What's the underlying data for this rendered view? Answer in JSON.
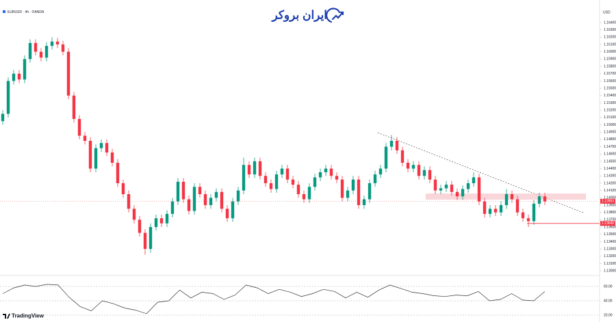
{
  "chart_data": {
    "type": "candlestick",
    "title": "EURUSD · 4h · OANDA",
    "brand": "ایران بروکر",
    "footer": "TradingView",
    "currency": "USD",
    "colors": {
      "up": "#089981",
      "down": "#f23645"
    },
    "open": [
      1.1505,
      1.1515,
      1.156,
      1.157,
      1.1562,
      1.159,
      1.1612,
      1.16,
      1.1592,
      1.1608,
      1.1614,
      1.161,
      1.16,
      1.154,
      1.1508,
      1.1485,
      1.1478,
      1.144,
      1.1468,
      1.1475,
      1.1462,
      1.1448,
      1.142,
      1.1405,
      1.1385,
      1.137,
      1.1352,
      1.133,
      1.136,
      1.1372,
      1.1365,
      1.1378,
      1.1395,
      1.1422,
      1.1398,
      1.1382,
      1.1415,
      1.1405,
      1.139,
      1.14,
      1.1408,
      1.1385,
      1.1372,
      1.1395,
      1.141,
      1.1445,
      1.1432,
      1.145,
      1.143,
      1.142,
      1.1412,
      1.1432,
      1.144,
      1.1425,
      1.1418,
      1.1405,
      1.1398,
      1.1415,
      1.1428,
      1.1435,
      1.144,
      1.143,
      1.1425,
      1.14,
      1.141,
      1.1425,
      1.139,
      1.1398,
      1.142,
      1.1432,
      1.144,
      1.147,
      1.1478,
      1.1465,
      1.1448,
      1.144,
      1.1445,
      1.143,
      1.1438,
      1.1425,
      1.141,
      1.1413,
      1.1418,
      1.1408,
      1.1402,
      1.1412,
      1.142,
      1.1428,
      1.1395,
      1.1378,
      1.1385,
      1.138,
      1.139,
      1.1405,
      1.1398,
      1.138,
      1.1372,
      1.1368,
      1.1392,
      1.1402
    ],
    "high": [
      1.152,
      1.1565,
      1.1575,
      1.1575,
      1.1595,
      1.1617,
      1.1617,
      1.1605,
      1.1613,
      1.162,
      1.1619,
      1.1615,
      1.1605,
      1.1545,
      1.1513,
      1.149,
      1.1483,
      1.1473,
      1.148,
      1.148,
      1.1467,
      1.1453,
      1.1425,
      1.141,
      1.139,
      1.1375,
      1.1357,
      1.1365,
      1.1377,
      1.1377,
      1.1383,
      1.14,
      1.1427,
      1.1427,
      1.1403,
      1.142,
      1.142,
      1.141,
      1.1405,
      1.1413,
      1.1413,
      1.139,
      1.14,
      1.1415,
      1.1455,
      1.145,
      1.1455,
      1.1455,
      1.1435,
      1.1425,
      1.1437,
      1.1445,
      1.1445,
      1.143,
      1.1423,
      1.141,
      1.142,
      1.1433,
      1.144,
      1.1445,
      1.1445,
      1.1435,
      1.143,
      1.1415,
      1.143,
      1.143,
      1.1403,
      1.1425,
      1.1437,
      1.1445,
      1.1475,
      1.1486,
      1.1483,
      1.147,
      1.1453,
      1.145,
      1.145,
      1.1443,
      1.1443,
      1.143,
      1.1418,
      1.1423,
      1.1423,
      1.1413,
      1.1417,
      1.1425,
      1.1435,
      1.1433,
      1.14,
      1.139,
      1.139,
      1.1395,
      1.1412,
      1.141,
      1.1403,
      1.1385,
      1.1377,
      1.1397,
      1.1407,
      1.1407
    ],
    "low": [
      1.15,
      1.151,
      1.1555,
      1.1557,
      1.1557,
      1.1585,
      1.1595,
      1.1587,
      1.1587,
      1.1603,
      1.1605,
      1.1595,
      1.1535,
      1.1503,
      1.148,
      1.1473,
      1.1435,
      1.1435,
      1.1463,
      1.1457,
      1.1443,
      1.1415,
      1.14,
      1.138,
      1.1365,
      1.1347,
      1.1322,
      1.1325,
      1.1355,
      1.136,
      1.136,
      1.1373,
      1.139,
      1.1393,
      1.1377,
      1.1377,
      1.14,
      1.1385,
      1.1385,
      1.1395,
      1.138,
      1.1367,
      1.1367,
      1.139,
      1.1405,
      1.1427,
      1.1427,
      1.1425,
      1.1415,
      1.1407,
      1.1407,
      1.1427,
      1.142,
      1.1413,
      1.14,
      1.1393,
      1.1393,
      1.141,
      1.1423,
      1.143,
      1.1425,
      1.142,
      1.1395,
      1.1395,
      1.1405,
      1.1385,
      1.1385,
      1.1393,
      1.1415,
      1.1427,
      1.1435,
      1.1465,
      1.146,
      1.1443,
      1.1435,
      1.1435,
      1.1425,
      1.1425,
      1.142,
      1.1405,
      1.1405,
      1.1408,
      1.1403,
      1.1397,
      1.1397,
      1.1407,
      1.1415,
      1.139,
      1.1373,
      1.1373,
      1.1375,
      1.1375,
      1.1385,
      1.1393,
      1.1375,
      1.1367,
      1.136,
      1.1363,
      1.1387,
      1.139
    ],
    "close": [
      1.1515,
      1.156,
      1.157,
      1.1562,
      1.159,
      1.1612,
      1.16,
      1.1592,
      1.1608,
      1.1614,
      1.161,
      1.16,
      1.154,
      1.1508,
      1.1485,
      1.1478,
      1.144,
      1.1468,
      1.1475,
      1.1462,
      1.1448,
      1.142,
      1.1405,
      1.1385,
      1.137,
      1.1352,
      1.133,
      1.136,
      1.1372,
      1.1365,
      1.1378,
      1.1395,
      1.1422,
      1.1398,
      1.1382,
      1.1415,
      1.1405,
      1.139,
      1.14,
      1.1408,
      1.1385,
      1.1372,
      1.1395,
      1.141,
      1.1445,
      1.1432,
      1.145,
      1.143,
      1.142,
      1.1412,
      1.1432,
      1.144,
      1.1425,
      1.1418,
      1.1405,
      1.1398,
      1.1415,
      1.1428,
      1.1435,
      1.144,
      1.143,
      1.1425,
      1.14,
      1.141,
      1.1425,
      1.139,
      1.1398,
      1.142,
      1.1432,
      1.144,
      1.147,
      1.1478,
      1.1465,
      1.1448,
      1.144,
      1.1445,
      1.143,
      1.1438,
      1.1425,
      1.141,
      1.1413,
      1.1418,
      1.1408,
      1.1402,
      1.1412,
      1.142,
      1.1428,
      1.1395,
      1.1378,
      1.1385,
      1.138,
      1.139,
      1.1405,
      1.1398,
      1.138,
      1.1372,
      1.1368,
      1.1392,
      1.1402,
      1.1395
    ],
    "ylim": [
      1.12964,
      1.16615
    ],
    "yticks": [
      {
        "value": 1.164,
        "label": "1.16400"
      },
      {
        "value": 1.163,
        "label": "1.16300"
      },
      {
        "value": 1.162,
        "label": "1.16200"
      },
      {
        "value": 1.161,
        "label": "1.16100"
      },
      {
        "value": 1.16,
        "label": "1.16000"
      },
      {
        "value": 1.159,
        "label": "1.15900"
      },
      {
        "value": 1.158,
        "label": "1.15800"
      },
      {
        "value": 1.157,
        "label": "1.15700"
      },
      {
        "value": 1.156,
        "label": "1.15600"
      },
      {
        "value": 1.155,
        "label": "1.15500"
      },
      {
        "value": 1.154,
        "label": "1.15400"
      },
      {
        "value": 1.153,
        "label": "1.15300"
      },
      {
        "value": 1.152,
        "label": "1.15200"
      },
      {
        "value": 1.151,
        "label": "1.15100"
      },
      {
        "value": 1.15,
        "label": "1.15000"
      },
      {
        "value": 1.149,
        "label": "1.14900"
      },
      {
        "value": 1.148,
        "label": "1.14800"
      },
      {
        "value": 1.147,
        "label": "1.14700"
      },
      {
        "value": 1.146,
        "label": "1.14600"
      },
      {
        "value": 1.145,
        "label": "1.14500"
      },
      {
        "value": 1.144,
        "label": "1.14400"
      },
      {
        "value": 1.143,
        "label": "1.14300"
      },
      {
        "value": 1.142,
        "label": "1.14200"
      },
      {
        "value": 1.141,
        "label": "1.14100"
      },
      {
        "value": 1.14,
        "label": "1.14000"
      },
      {
        "value": 1.139,
        "label": "1.13900"
      },
      {
        "value": 1.138,
        "label": "1.13800"
      },
      {
        "value": 1.137,
        "label": "1.13700"
      },
      {
        "value": 1.136,
        "label": "1.13600"
      },
      {
        "value": 1.135,
        "label": "1.13500"
      },
      {
        "value": 1.134,
        "label": "1.13400"
      },
      {
        "value": 1.133,
        "label": "1.13300"
      },
      {
        "value": 1.132,
        "label": "1.13200"
      },
      {
        "value": 1.131,
        "label": "1.13100"
      },
      {
        "value": 1.13,
        "label": "1.13000"
      }
    ],
    "price_label": {
      "value": 1.13953,
      "label": "1.13953"
    },
    "level_label": {
      "value": 1.13649,
      "label": "1.13649"
    },
    "rsi": {
      "color": "#333333",
      "values": [
        50,
        58,
        62,
        60,
        63,
        62,
        45,
        32,
        26,
        40,
        36,
        30,
        27,
        22,
        38,
        40,
        55,
        44,
        52,
        50,
        42,
        48,
        62,
        58,
        50,
        56,
        52,
        46,
        50,
        56,
        53,
        44,
        52,
        45,
        55,
        62,
        57,
        52,
        50,
        47,
        46,
        48,
        47,
        53,
        40,
        42,
        50,
        41,
        40,
        53
      ],
      "ylim": [
        20,
        70
      ],
      "yticks": [
        {
          "value": 60,
          "label": "60.00"
        },
        {
          "value": 40,
          "label": "40.00"
        },
        {
          "value": 20,
          "label": "20.00"
        }
      ]
    }
  }
}
